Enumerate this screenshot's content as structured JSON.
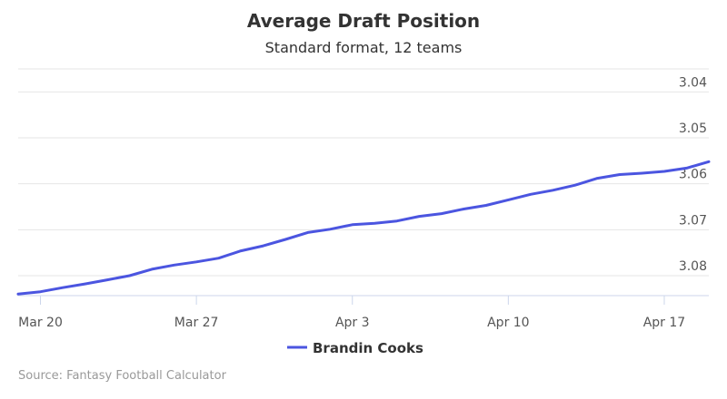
{
  "chart_data": {
    "type": "line",
    "title": "Average Draft Position",
    "subtitle": "Standard format, 12 teams",
    "credit": "Source: Fantasy Football Calculator",
    "x_tick_labels": [
      "Mar 20",
      "Mar 27",
      "Apr 3",
      "Apr 10",
      "Apr 17"
    ],
    "x_tick_dates": [
      "2017-03-20",
      "2017-03-27",
      "2017-04-03",
      "2017-04-10",
      "2017-04-17"
    ],
    "y_tick_labels": [
      "3.04",
      "3.05",
      "3.06",
      "3.07",
      "3.08"
    ],
    "y_tick_values": [
      3.04,
      3.05,
      3.06,
      3.07,
      3.08
    ],
    "ylim": [
      3.035,
      3.08
    ],
    "y_reversed": true,
    "xlim": [
      "2017-03-19",
      "2017-04-19"
    ],
    "grid": true,
    "legend_position": "bottom-center",
    "series": [
      {
        "name": "Brandin Cooks",
        "color": "#4b55e0",
        "x": [
          "2017-03-19",
          "2017-03-20",
          "2017-03-21",
          "2017-03-22",
          "2017-03-23",
          "2017-03-24",
          "2017-03-25",
          "2017-03-26",
          "2017-03-27",
          "2017-03-28",
          "2017-03-29",
          "2017-03-30",
          "2017-03-31",
          "2017-04-01",
          "2017-04-02",
          "2017-04-03",
          "2017-04-04",
          "2017-04-05",
          "2017-04-06",
          "2017-04-07",
          "2017-04-08",
          "2017-04-09",
          "2017-04-10",
          "2017-04-11",
          "2017-04-12",
          "2017-04-13",
          "2017-04-14",
          "2017-04-15",
          "2017-04-16",
          "2017-04-17",
          "2017-04-18",
          "2017-04-19"
        ],
        "values": [
          3.084,
          3.0835,
          3.0826,
          3.0818,
          3.0809,
          3.08,
          3.0786,
          3.0777,
          3.077,
          3.0762,
          3.0746,
          3.0735,
          3.0721,
          3.0706,
          3.0699,
          3.0689,
          3.0686,
          3.0681,
          3.0671,
          3.0665,
          3.0655,
          3.0647,
          3.0635,
          3.0623,
          3.0614,
          3.0603,
          3.0588,
          3.058,
          3.0577,
          3.0573,
          3.0566,
          3.0552
        ]
      }
    ]
  }
}
